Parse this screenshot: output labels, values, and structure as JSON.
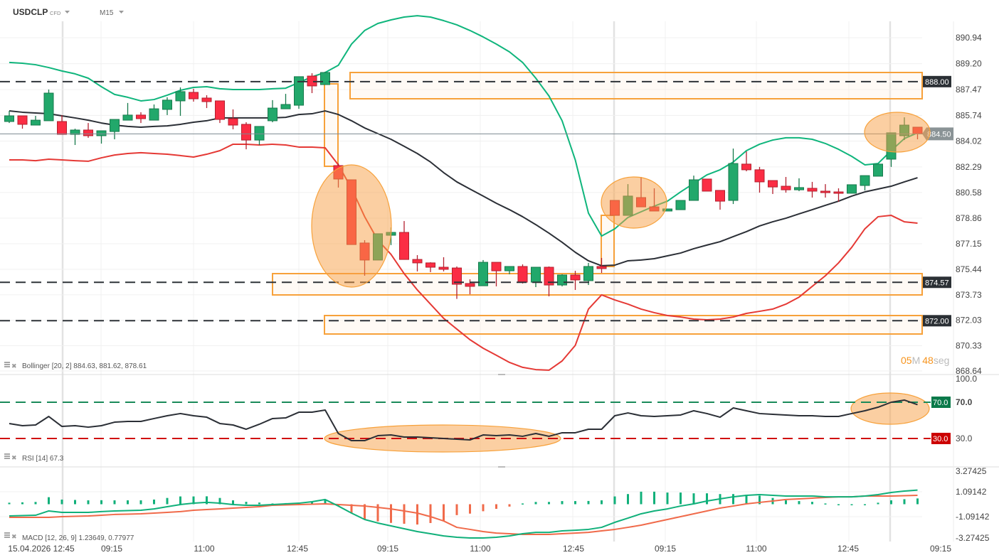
{
  "header": {
    "symbol": "USDCLP",
    "instrument_type": "CFD",
    "timeframe": "M15",
    "dropdown_icon": "caret-down-icon"
  },
  "legends": {
    "bollinger": "Bollinger [20, 2] 884.63, 881.62, 878.61",
    "rsi": "RSI [14] 67.3",
    "macd": "MACD [12, 26, 9] 1.23649, 0.77977",
    "icons": [
      "menu-lines-icon",
      "close-x-icon"
    ]
  },
  "timer": {
    "minutes": "05",
    "minutes_unit": "M",
    "seconds": "48",
    "seconds_unit": "seg"
  },
  "colors": {
    "up": "#22a86b",
    "down": "#fb2d44",
    "upper_band": "#0fb57c",
    "middle_band": "#2b2f36",
    "lower_band": "#e53935",
    "annotation": "#f7a13a",
    "rsi_overbought": "#0a7a4a",
    "rsi_oversold": "#cc0000",
    "macd_line": "#10b07a",
    "signal_line": "#f06a4a"
  },
  "chart_data": [
    {
      "type": "candlestick",
      "x_ticks": [
        "15.04.2026 12:45",
        "09:15",
        "11:00",
        "12:45",
        "09:15",
        "11:00",
        "12:45",
        "09:15",
        "11:00",
        "12:45",
        "09:15"
      ],
      "y_ticks": [
        "890.94",
        "889.20",
        "887.47",
        "885.74",
        "884.02",
        "882.29",
        "880.58",
        "878.86",
        "877.15",
        "875.44",
        "873.73",
        "872.03",
        "870.33",
        "868.64"
      ],
      "ylim": [
        868.64,
        890.94
      ],
      "last_price": "884.50",
      "levels": [
        "888.00",
        "874.57",
        "872.00"
      ],
      "candles_ohlc": [
        [
          885.33,
          886.04,
          885.23,
          885.71
        ],
        [
          885.71,
          885.71,
          884.85,
          885.14
        ],
        [
          885.09,
          885.71,
          885.09,
          885.42
        ],
        [
          885.38,
          887.47,
          885.38,
          887.23
        ],
        [
          885.33,
          885.76,
          884.47,
          884.47
        ],
        [
          884.47,
          884.85,
          883.76,
          884.76
        ],
        [
          884.76,
          885.23,
          884.24,
          884.38
        ],
        [
          884.38,
          884.71,
          883.85,
          884.71
        ],
        [
          884.66,
          885.47,
          884.14,
          885.47
        ],
        [
          885.42,
          886.57,
          885.42,
          885.76
        ],
        [
          885.76,
          885.95,
          885.23,
          885.52
        ],
        [
          885.42,
          886.47,
          885.42,
          886.18
        ],
        [
          886.14,
          886.95,
          885.76,
          886.76
        ],
        [
          886.71,
          887.61,
          885.71,
          887.33
        ],
        [
          887.28,
          887.52,
          886.66,
          886.85
        ],
        [
          886.9,
          887.09,
          886.23,
          886.66
        ],
        [
          886.71,
          886.71,
          885.23,
          885.47
        ],
        [
          885.52,
          886.14,
          884.81,
          885.09
        ],
        [
          885.14,
          885.28,
          883.47,
          884.09
        ],
        [
          884.09,
          885.0,
          883.76,
          885.0
        ],
        [
          885.38,
          886.76,
          885.28,
          886.23
        ],
        [
          886.18,
          887.18,
          886.18,
          886.47
        ],
        [
          886.42,
          888.33,
          886.18,
          888.33
        ],
        [
          888.37,
          888.56,
          887.23,
          887.71
        ],
        [
          887.8,
          888.66,
          887.8,
          888.61
        ],
        [
          882.38,
          882.52,
          880.91,
          881.48
        ],
        [
          881.43,
          881.43,
          877.1,
          877.1
        ],
        [
          877.2,
          877.39,
          875.01,
          876.06
        ],
        [
          876.06,
          877.82,
          876.06,
          877.82
        ],
        [
          877.72,
          878.24,
          877.06,
          877.91
        ],
        [
          877.91,
          878.67,
          876.1,
          876.1
        ],
        [
          876.1,
          876.39,
          875.3,
          875.87
        ],
        [
          875.87,
          875.91,
          875.25,
          875.58
        ],
        [
          875.58,
          876.25,
          875.3,
          875.44
        ],
        [
          875.53,
          875.63,
          873.46,
          874.44
        ],
        [
          874.49,
          874.77,
          873.77,
          874.3
        ],
        [
          874.34,
          876.06,
          874.34,
          875.91
        ],
        [
          875.91,
          875.91,
          874.3,
          875.34
        ],
        [
          875.34,
          875.63,
          875.11,
          875.63
        ],
        [
          875.63,
          875.77,
          874.49,
          874.58
        ],
        [
          874.58,
          875.58,
          874.25,
          875.58
        ],
        [
          875.58,
          875.63,
          873.63,
          874.39
        ],
        [
          874.39,
          875.11,
          874.3,
          875.06
        ],
        [
          875.06,
          875.34,
          874.06,
          874.73
        ],
        [
          874.68,
          875.87,
          874.39,
          875.63
        ],
        [
          875.63,
          876.2,
          875.2,
          875.49
        ],
        [
          880.05,
          880.05,
          879.05,
          879.05
        ],
        [
          879.05,
          881.14,
          879.05,
          880.34
        ],
        [
          880.24,
          881.62,
          879.62,
          879.62
        ],
        [
          879.62,
          880.86,
          879.34,
          879.34
        ],
        [
          879.34,
          879.48,
          879.34,
          879.48
        ],
        [
          879.43,
          880.05,
          879.43,
          880.05
        ],
        [
          880.05,
          881.71,
          880.05,
          881.43
        ],
        [
          881.48,
          881.48,
          880.67,
          880.67
        ],
        [
          880.72,
          880.72,
          879.43,
          880.0
        ],
        [
          880.05,
          883.52,
          879.81,
          882.52
        ],
        [
          882.48,
          883.33,
          882.0,
          882.1
        ],
        [
          882.1,
          882.29,
          880.57,
          881.29
        ],
        [
          881.38,
          881.38,
          880.48,
          880.95
        ],
        [
          881.0,
          881.62,
          880.57,
          880.76
        ],
        [
          880.76,
          881.53,
          880.67,
          880.91
        ],
        [
          880.86,
          881.29,
          880.24,
          880.67
        ],
        [
          880.67,
          881.14,
          880.24,
          880.57
        ],
        [
          880.62,
          880.86,
          879.96,
          880.53
        ],
        [
          880.53,
          881.1,
          880.53,
          881.1
        ],
        [
          881.05,
          881.71,
          880.72,
          881.71
        ],
        [
          881.67,
          882.48,
          881.67,
          882.48
        ],
        [
          882.81,
          884.57,
          882.29,
          884.57
        ],
        [
          884.38,
          885.61,
          884.09,
          885.09
        ],
        [
          884.95,
          884.95,
          884.14,
          884.5
        ]
      ],
      "bollinger_upper": [
        889.28,
        889.23,
        889.13,
        888.94,
        888.71,
        888.52,
        888.23,
        887.66,
        887.14,
        886.95,
        886.71,
        886.8,
        887.09,
        887.42,
        887.61,
        887.66,
        887.52,
        887.47,
        887.47,
        887.47,
        887.52,
        887.56,
        887.94,
        888.32,
        888.61,
        889.09,
        890.51,
        891.42,
        891.89,
        892.13,
        892.32,
        892.41,
        892.32,
        892.08,
        891.8,
        891.42,
        890.99,
        890.51,
        889.99,
        889.28,
        888.23,
        887.04,
        885.38,
        882.76,
        879.2,
        877.67,
        878.15,
        878.91,
        879.29,
        879.67,
        880.0,
        880.62,
        881.19,
        881.76,
        882.1,
        882.62,
        883.38,
        883.81,
        884.09,
        884.24,
        884.24,
        884.14,
        883.86,
        883.47,
        883.0,
        882.43,
        882.52,
        883.38,
        884.19,
        884.57
      ],
      "bollinger_middle": [
        886.04,
        885.95,
        885.9,
        885.85,
        885.71,
        885.57,
        885.42,
        885.23,
        885.09,
        885.0,
        884.95,
        885.0,
        885.04,
        885.14,
        885.28,
        885.38,
        885.57,
        885.57,
        885.57,
        885.57,
        885.57,
        885.61,
        885.8,
        885.85,
        886.04,
        885.8,
        885.38,
        884.9,
        884.52,
        884.14,
        883.67,
        883.19,
        882.62,
        881.91,
        881.29,
        880.81,
        880.34,
        879.86,
        879.43,
        878.96,
        878.43,
        877.86,
        877.25,
        876.58,
        876.01,
        875.68,
        875.72,
        876.01,
        876.06,
        876.15,
        876.34,
        876.53,
        876.82,
        877.06,
        877.29,
        877.63,
        877.96,
        878.34,
        878.62,
        878.86,
        879.15,
        879.43,
        879.72,
        880.0,
        880.34,
        880.62,
        880.81,
        881.0,
        881.29,
        881.57
      ],
      "bollinger_lower": [
        882.76,
        882.76,
        882.71,
        882.81,
        882.76,
        882.71,
        882.67,
        882.9,
        883.09,
        883.19,
        883.24,
        883.19,
        883.14,
        883.05,
        882.95,
        883.14,
        883.38,
        883.81,
        883.81,
        883.76,
        883.81,
        883.76,
        883.62,
        883.62,
        883.57,
        882.43,
        880.86,
        878.96,
        877.39,
        876.44,
        875.15,
        874.06,
        873.11,
        872.16,
        871.44,
        870.73,
        870.16,
        869.69,
        869.21,
        868.88,
        868.73,
        868.69,
        869.31,
        870.35,
        872.78,
        873.73,
        873.39,
        873.11,
        872.78,
        872.54,
        872.35,
        872.25,
        872.11,
        872.06,
        872.11,
        872.25,
        872.49,
        872.63,
        872.78,
        873.11,
        873.58,
        874.3,
        875.01,
        875.87,
        876.91,
        878.15,
        878.96,
        879.05,
        878.62,
        878.53
      ]
    },
    {
      "type": "line",
      "indicator": "RSI",
      "y_ticks": [
        "100.0",
        "70.0",
        "30.0"
      ],
      "levels": [
        "70.0",
        "30.0"
      ],
      "values": [
        46.5,
        44.1,
        44.9,
        54.3,
        43.3,
        44.1,
        42.5,
        44.1,
        48.0,
        48.8,
        48.8,
        52.0,
        55.1,
        57.5,
        55.1,
        53.5,
        46.5,
        44.9,
        40.2,
        45.7,
        52.0,
        52.7,
        59.0,
        59.0,
        61.4,
        35.5,
        27.6,
        27.6,
        33.1,
        33.9,
        31.6,
        31.6,
        30.8,
        30.0,
        29.2,
        28.4,
        33.9,
        33.1,
        33.9,
        32.4,
        35.5,
        32.4,
        36.3,
        36.3,
        40.2,
        40.2,
        55.1,
        58.2,
        55.1,
        54.3,
        55.1,
        55.9,
        60.6,
        57.5,
        53.5,
        63.7,
        60.6,
        57.5,
        56.7,
        55.9,
        55.1,
        55.1,
        54.3,
        54.3,
        57.5,
        60.6,
        64.5,
        70.0,
        72.4,
        67.3
      ]
    },
    {
      "type": "line",
      "indicator": "MACD",
      "y_ticks": [
        "3.27425",
        "1.09142",
        "-1.09142",
        "-3.27425"
      ],
      "macd": [
        -1.03,
        -1.0,
        -0.97,
        -0.59,
        -0.72,
        -0.72,
        -0.72,
        -0.65,
        -0.59,
        -0.56,
        -0.53,
        -0.41,
        -0.22,
        -0.03,
        0.09,
        0.16,
        0.09,
        -0.03,
        -0.09,
        -0.09,
        -0.03,
        0.03,
        0.09,
        0.22,
        0.41,
        -0.16,
        -0.78,
        -1.34,
        -1.65,
        -1.9,
        -2.15,
        -2.4,
        -2.59,
        -2.78,
        -2.9,
        -2.96,
        -2.96,
        -2.9,
        -2.78,
        -2.59,
        -2.47,
        -2.47,
        -2.34,
        -2.28,
        -2.21,
        -2.03,
        -1.59,
        -1.22,
        -0.84,
        -0.59,
        -0.41,
        -0.16,
        0.03,
        0.28,
        0.47,
        0.65,
        0.78,
        0.84,
        0.78,
        0.72,
        0.72,
        0.72,
        0.65,
        0.65,
        0.65,
        0.72,
        0.84,
        1.03,
        1.15,
        1.24
      ],
      "signal": [
        -1.15,
        -1.15,
        -1.15,
        -1.15,
        -1.09,
        -1.06,
        -1.03,
        -0.97,
        -0.9,
        -0.87,
        -0.84,
        -0.78,
        -0.72,
        -0.65,
        -0.53,
        -0.47,
        -0.41,
        -0.34,
        -0.28,
        -0.22,
        -0.09,
        -0.06,
        -0.03,
        0.0,
        0.03,
        -0.03,
        -0.09,
        -0.16,
        -0.28,
        -0.41,
        -0.59,
        -0.78,
        -1.09,
        -1.47,
        -2.03,
        -2.21,
        -2.4,
        -2.53,
        -2.59,
        -2.65,
        -2.65,
        -2.65,
        -2.59,
        -2.53,
        -2.47,
        -2.34,
        -2.21,
        -2.03,
        -1.84,
        -1.59,
        -1.34,
        -1.09,
        -0.84,
        -0.59,
        -0.34,
        -0.16,
        0.03,
        0.16,
        0.28,
        0.41,
        0.47,
        0.53,
        0.59,
        0.65,
        0.65,
        0.72,
        0.72,
        0.72,
        0.75,
        0.78
      ]
    }
  ]
}
